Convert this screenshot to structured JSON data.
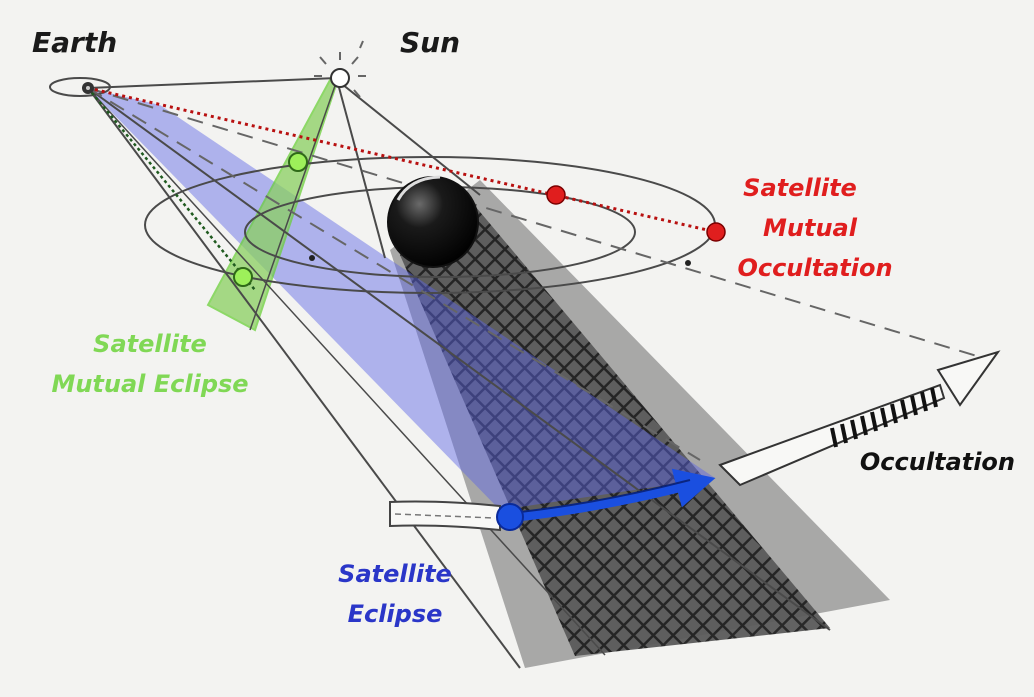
{
  "labels": {
    "earth": "Earth",
    "sun": "Sun",
    "mutual_occultation": [
      "Satellite",
      "Mutual",
      "Occultation"
    ],
    "mutual_eclipse": [
      "Satellite",
      "Mutual Eclipse"
    ],
    "eclipse": [
      "Satellite",
      "Eclipse"
    ],
    "occultation": "Occultation"
  },
  "colors": {
    "background": "#f3f3f1",
    "line": "#4a4a4a",
    "red": "#e01e1e",
    "green": "#7fe23a",
    "green_label": "#80d855",
    "blue": "#1a4fe0",
    "blue_label": "#2a36c8",
    "blue_cone": "#5a64e6",
    "shadow": "#2a2a2a"
  }
}
